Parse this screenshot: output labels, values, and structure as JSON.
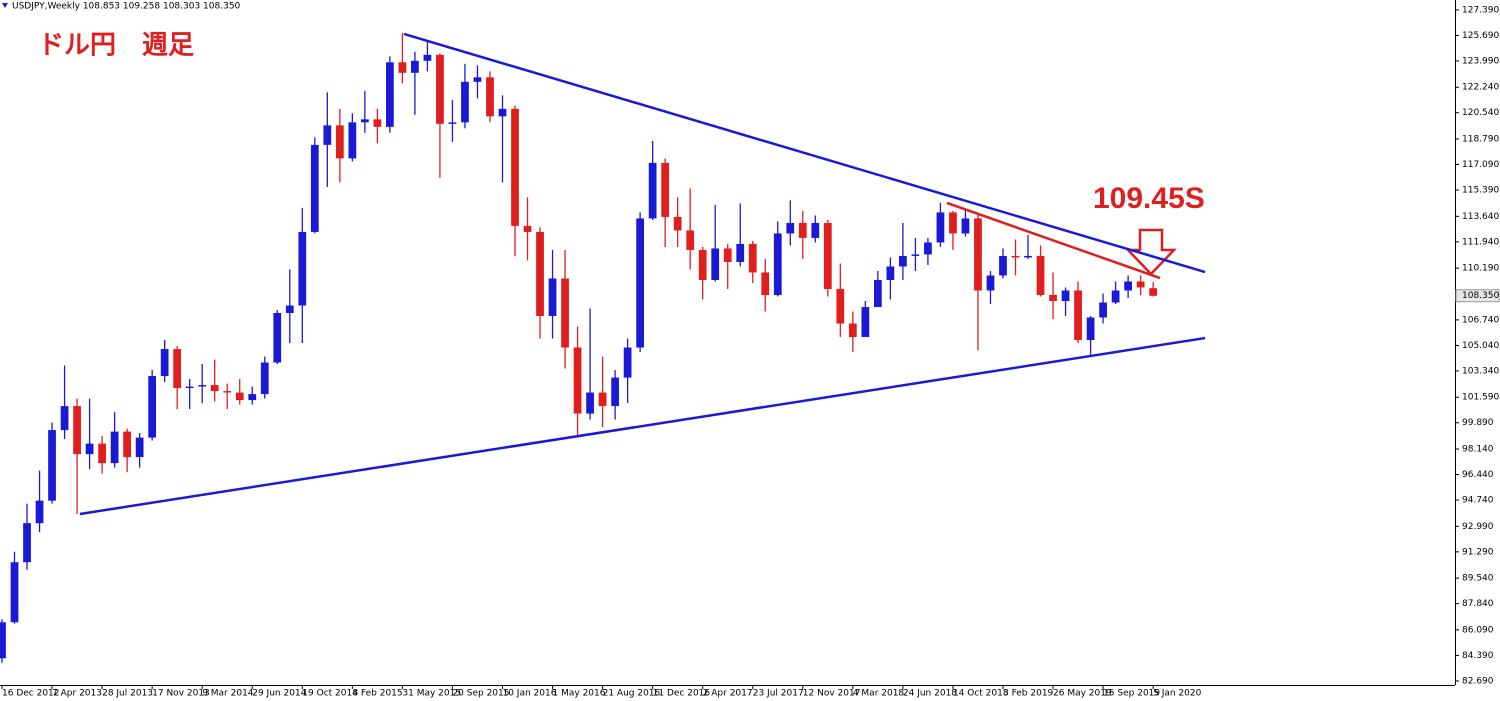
{
  "chart_data": {
    "type": "candlestick",
    "header": "USDJPY,Weekly  108.853 109.258 108.303 108.350",
    "title": "ドル円　週足",
    "annotation": "109.45S",
    "up_color": "#1a1ad6",
    "down_color": "#e01e1e",
    "xlim": [
      -0.64,
      464.5
    ],
    "ylim": [
      82.42,
      128.05
    ],
    "yticks": [
      {
        "value": 127.39,
        "label": "127.390"
      },
      {
        "value": 125.69,
        "label": "125.690"
      },
      {
        "value": 123.99,
        "label": "123.990"
      },
      {
        "value": 122.24,
        "label": "122.240"
      },
      {
        "value": 120.54,
        "label": "120.540"
      },
      {
        "value": 118.79,
        "label": "118.790"
      },
      {
        "value": 117.09,
        "label": "117.090"
      },
      {
        "value": 115.39,
        "label": "115.390"
      },
      {
        "value": 113.64,
        "label": "113.640"
      },
      {
        "value": 111.94,
        "label": "111.940"
      },
      {
        "value": 110.19,
        "label": "110.190"
      },
      {
        "value": 106.74,
        "label": "106.740"
      },
      {
        "value": 105.04,
        "label": "105.040"
      },
      {
        "value": 103.34,
        "label": "103.340"
      },
      {
        "value": 101.59,
        "label": "101.590"
      },
      {
        "value": 99.89,
        "label": "99.890"
      },
      {
        "value": 98.14,
        "label": "98.140"
      },
      {
        "value": 96.44,
        "label": "96.440"
      },
      {
        "value": 94.74,
        "label": "94.740"
      },
      {
        "value": 92.99,
        "label": "92.990"
      },
      {
        "value": 91.29,
        "label": "91.290"
      },
      {
        "value": 89.54,
        "label": "89.540"
      },
      {
        "value": 87.84,
        "label": "87.840"
      },
      {
        "value": 86.09,
        "label": "86.090"
      },
      {
        "value": 84.39,
        "label": "84.390"
      },
      {
        "value": 82.69,
        "label": "82.690"
      }
    ],
    "current_price": {
      "value": 108.35,
      "label": "108.350"
    },
    "xticks": [
      {
        "value": 0,
        "label": "16 Dec 2012"
      },
      {
        "value": 16,
        "label": "7 Apr 2013"
      },
      {
        "value": 32,
        "label": "28 Jul 2013"
      },
      {
        "value": 48,
        "label": "17 Nov 2013"
      },
      {
        "value": 64,
        "label": "9 Mar 2014"
      },
      {
        "value": 80,
        "label": "29 Jun 2014"
      },
      {
        "value": 96,
        "label": "19 Oct 2014"
      },
      {
        "value": 112,
        "label": "8 Feb 2015"
      },
      {
        "value": 128,
        "label": "31 May 2015"
      },
      {
        "value": 144,
        "label": "20 Sep 2015"
      },
      {
        "value": 160,
        "label": "10 Jan 2016"
      },
      {
        "value": 176,
        "label": "1 May 2016"
      },
      {
        "value": 192,
        "label": "21 Aug 2016"
      },
      {
        "value": 208,
        "label": "11 Dec 2016"
      },
      {
        "value": 224,
        "label": "2 Apr 2017"
      },
      {
        "value": 240,
        "label": "23 Jul 2017"
      },
      {
        "value": 256,
        "label": "12 Nov 2017"
      },
      {
        "value": 272,
        "label": "4 Mar 2018"
      },
      {
        "value": 288,
        "label": "24 Jun 2018"
      },
      {
        "value": 304,
        "label": "14 Oct 2018"
      },
      {
        "value": 320,
        "label": "3 Feb 2019"
      },
      {
        "value": 336,
        "label": "26 May 2019"
      },
      {
        "value": 352,
        "label": "15 Sep 2019"
      },
      {
        "value": 368,
        "label": "5 Jan 2020"
      }
    ],
    "trendlines": [
      {
        "color": "#1a1ad6",
        "points": [
          [
            128.5,
            125.79
          ],
          [
            384.6,
            109.93
          ]
        ]
      },
      {
        "color": "#1a1ad6",
        "points": [
          [
            24.9,
            93.81
          ],
          [
            384.6,
            105.53
          ]
        ]
      },
      {
        "color": "#e01e1e",
        "points": [
          [
            302.1,
            114.53
          ],
          [
            370.2,
            109.53
          ]
        ]
      }
    ],
    "candles": [
      {
        "week": 0,
        "open": 84.2,
        "high": 86.8,
        "low": 83.9,
        "close": 86.6
      },
      {
        "week": 4,
        "open": 86.6,
        "high": 91.3,
        "low": 86.5,
        "close": 90.6
      },
      {
        "week": 8,
        "open": 90.6,
        "high": 94.5,
        "low": 90.1,
        "close": 93.2
      },
      {
        "week": 12,
        "open": 93.2,
        "high": 96.7,
        "low": 92.6,
        "close": 94.7
      },
      {
        "week": 16,
        "open": 94.7,
        "high": 99.9,
        "low": 94.5,
        "close": 99.4
      },
      {
        "week": 20,
        "open": 99.4,
        "high": 103.7,
        "low": 98.8,
        "close": 101.0
      },
      {
        "week": 24,
        "open": 101.0,
        "high": 101.5,
        "low": 93.8,
        "close": 97.8
      },
      {
        "week": 28,
        "open": 97.8,
        "high": 101.5,
        "low": 96.8,
        "close": 98.5
      },
      {
        "week": 32,
        "open": 98.5,
        "high": 99.0,
        "low": 96.5,
        "close": 97.2
      },
      {
        "week": 36,
        "open": 97.2,
        "high": 100.6,
        "low": 96.9,
        "close": 99.3
      },
      {
        "week": 40,
        "open": 99.3,
        "high": 99.5,
        "low": 96.6,
        "close": 97.6
      },
      {
        "week": 44,
        "open": 97.6,
        "high": 99.2,
        "low": 96.9,
        "close": 98.9
      },
      {
        "week": 48,
        "open": 98.9,
        "high": 103.4,
        "low": 98.7,
        "close": 103.0
      },
      {
        "week": 52,
        "open": 103.0,
        "high": 105.4,
        "low": 102.6,
        "close": 104.8
      },
      {
        "week": 56,
        "open": 104.8,
        "high": 105.0,
        "low": 100.8,
        "close": 102.2
      },
      {
        "week": 60,
        "open": 102.2,
        "high": 102.8,
        "low": 100.8,
        "close": 102.3
      },
      {
        "week": 64,
        "open": 102.3,
        "high": 103.8,
        "low": 101.2,
        "close": 102.4
      },
      {
        "week": 68,
        "open": 102.4,
        "high": 104.1,
        "low": 101.3,
        "close": 102.0
      },
      {
        "week": 72,
        "open": 102.0,
        "high": 102.5,
        "low": 100.8,
        "close": 101.9
      },
      {
        "week": 76,
        "open": 101.9,
        "high": 102.8,
        "low": 101.1,
        "close": 101.4
      },
      {
        "week": 80,
        "open": 101.4,
        "high": 102.3,
        "low": 101.1,
        "close": 101.8
      },
      {
        "week": 84,
        "open": 101.8,
        "high": 104.3,
        "low": 101.5,
        "close": 103.9
      },
      {
        "week": 88,
        "open": 103.9,
        "high": 107.4,
        "low": 103.8,
        "close": 107.2
      },
      {
        "week": 92,
        "open": 107.2,
        "high": 110.1,
        "low": 105.2,
        "close": 107.7
      },
      {
        "week": 96,
        "open": 107.7,
        "high": 114.2,
        "low": 105.2,
        "close": 112.6
      },
      {
        "week": 100,
        "open": 112.6,
        "high": 118.9,
        "low": 112.5,
        "close": 118.4
      },
      {
        "week": 104,
        "open": 118.4,
        "high": 121.9,
        "low": 115.6,
        "close": 119.7
      },
      {
        "week": 108,
        "open": 119.7,
        "high": 120.8,
        "low": 115.9,
        "close": 117.5
      },
      {
        "week": 112,
        "open": 117.5,
        "high": 120.5,
        "low": 117.3,
        "close": 119.9
      },
      {
        "week": 116,
        "open": 119.9,
        "high": 122.0,
        "low": 119.2,
        "close": 120.1
      },
      {
        "week": 120,
        "open": 120.1,
        "high": 120.8,
        "low": 118.5,
        "close": 119.6
      },
      {
        "week": 124,
        "open": 119.6,
        "high": 124.3,
        "low": 119.2,
        "close": 123.9
      },
      {
        "week": 128,
        "open": 123.9,
        "high": 125.86,
        "low": 122.5,
        "close": 123.2
      },
      {
        "week": 132,
        "open": 123.2,
        "high": 124.6,
        "low": 120.4,
        "close": 124.0
      },
      {
        "week": 136,
        "open": 124.0,
        "high": 125.3,
        "low": 123.3,
        "close": 124.4
      },
      {
        "week": 140,
        "open": 124.4,
        "high": 124.5,
        "low": 116.2,
        "close": 119.8
      },
      {
        "week": 144,
        "open": 119.8,
        "high": 121.4,
        "low": 118.6,
        "close": 119.9
      },
      {
        "week": 148,
        "open": 119.9,
        "high": 123.8,
        "low": 119.5,
        "close": 122.6
      },
      {
        "week": 152,
        "open": 122.6,
        "high": 123.7,
        "low": 121.5,
        "close": 122.9
      },
      {
        "week": 156,
        "open": 122.9,
        "high": 123.3,
        "low": 119.9,
        "close": 120.3
      },
      {
        "week": 160,
        "open": 120.3,
        "high": 121.7,
        "low": 115.9,
        "close": 120.8
      },
      {
        "week": 164,
        "open": 120.8,
        "high": 121.0,
        "low": 110.98,
        "close": 113.0
      },
      {
        "week": 168,
        "open": 113.0,
        "high": 114.9,
        "low": 110.7,
        "close": 112.6
      },
      {
        "week": 172,
        "open": 112.6,
        "high": 112.9,
        "low": 105.5,
        "close": 107.0
      },
      {
        "week": 176,
        "open": 107.0,
        "high": 111.4,
        "low": 105.5,
        "close": 109.5
      },
      {
        "week": 180,
        "open": 109.5,
        "high": 111.4,
        "low": 103.5,
        "close": 104.9
      },
      {
        "week": 184,
        "open": 104.9,
        "high": 106.3,
        "low": 99.0,
        "close": 100.5
      },
      {
        "week": 188,
        "open": 100.5,
        "high": 107.5,
        "low": 100.1,
        "close": 101.9
      },
      {
        "week": 192,
        "open": 101.9,
        "high": 104.3,
        "low": 99.6,
        "close": 101.0
      },
      {
        "week": 196,
        "open": 101.0,
        "high": 103.4,
        "low": 100.1,
        "close": 102.9
      },
      {
        "week": 200,
        "open": 102.9,
        "high": 105.5,
        "low": 101.2,
        "close": 104.9
      },
      {
        "week": 204,
        "open": 104.9,
        "high": 113.9,
        "low": 104.6,
        "close": 113.5
      },
      {
        "week": 208,
        "open": 113.5,
        "high": 118.66,
        "low": 113.4,
        "close": 117.2
      },
      {
        "week": 212,
        "open": 117.2,
        "high": 117.5,
        "low": 111.6,
        "close": 113.6
      },
      {
        "week": 216,
        "open": 113.6,
        "high": 114.9,
        "low": 111.6,
        "close": 112.7
      },
      {
        "week": 220,
        "open": 112.7,
        "high": 115.5,
        "low": 110.1,
        "close": 111.4
      },
      {
        "week": 224,
        "open": 111.4,
        "high": 111.6,
        "low": 108.1,
        "close": 109.4
      },
      {
        "week": 228,
        "open": 109.4,
        "high": 114.4,
        "low": 109.3,
        "close": 111.5
      },
      {
        "week": 232,
        "open": 111.5,
        "high": 111.8,
        "low": 108.8,
        "close": 110.6
      },
      {
        "week": 236,
        "open": 110.6,
        "high": 114.5,
        "low": 110.3,
        "close": 111.8
      },
      {
        "week": 240,
        "open": 111.8,
        "high": 112.0,
        "low": 109.2,
        "close": 109.9
      },
      {
        "week": 244,
        "open": 109.9,
        "high": 110.8,
        "low": 107.3,
        "close": 108.4
      },
      {
        "week": 248,
        "open": 108.4,
        "high": 113.3,
        "low": 108.3,
        "close": 112.5
      },
      {
        "week": 252,
        "open": 112.5,
        "high": 114.7,
        "low": 111.7,
        "close": 113.2
      },
      {
        "week": 256,
        "open": 113.2,
        "high": 114.0,
        "low": 110.8,
        "close": 112.2
      },
      {
        "week": 260,
        "open": 112.2,
        "high": 113.7,
        "low": 111.9,
        "close": 113.2
      },
      {
        "week": 264,
        "open": 113.2,
        "high": 113.4,
        "low": 108.3,
        "close": 108.8
      },
      {
        "week": 268,
        "open": 108.8,
        "high": 110.5,
        "low": 105.6,
        "close": 106.5
      },
      {
        "week": 272,
        "open": 106.5,
        "high": 107.3,
        "low": 104.6,
        "close": 105.6
      },
      {
        "week": 276,
        "open": 105.6,
        "high": 108.0,
        "low": 105.6,
        "close": 107.6
      },
      {
        "week": 280,
        "open": 107.6,
        "high": 110.0,
        "low": 107.6,
        "close": 109.4
      },
      {
        "week": 284,
        "open": 109.4,
        "high": 110.9,
        "low": 108.1,
        "close": 110.3
      },
      {
        "week": 288,
        "open": 110.3,
        "high": 113.2,
        "low": 109.4,
        "close": 111.0
      },
      {
        "week": 292,
        "open": 111.0,
        "high": 112.2,
        "low": 110.0,
        "close": 111.1
      },
      {
        "week": 296,
        "open": 111.1,
        "high": 112.2,
        "low": 110.4,
        "close": 111.9
      },
      {
        "week": 300,
        "open": 111.9,
        "high": 114.55,
        "low": 111.6,
        "close": 113.9
      },
      {
        "week": 304,
        "open": 113.9,
        "high": 114.0,
        "low": 111.4,
        "close": 112.5
      },
      {
        "week": 308,
        "open": 112.5,
        "high": 114.1,
        "low": 112.3,
        "close": 113.5
      },
      {
        "week": 312,
        "open": 113.5,
        "high": 113.8,
        "low": 104.7,
        "close": 108.7
      },
      {
        "week": 316,
        "open": 108.7,
        "high": 110.0,
        "low": 107.8,
        "close": 109.7
      },
      {
        "week": 320,
        "open": 109.7,
        "high": 111.5,
        "low": 109.5,
        "close": 111.0
      },
      {
        "week": 324,
        "open": 111.0,
        "high": 112.1,
        "low": 109.7,
        "close": 110.9
      },
      {
        "week": 328,
        "open": 110.9,
        "high": 112.4,
        "low": 110.8,
        "close": 111.0
      },
      {
        "week": 332,
        "open": 111.0,
        "high": 111.7,
        "low": 108.3,
        "close": 108.4
      },
      {
        "week": 336,
        "open": 108.4,
        "high": 109.9,
        "low": 106.8,
        "close": 108.0
      },
      {
        "week": 340,
        "open": 108.0,
        "high": 108.9,
        "low": 107.0,
        "close": 108.7
      },
      {
        "week": 344,
        "open": 108.7,
        "high": 109.3,
        "low": 105.2,
        "close": 105.4
      },
      {
        "week": 348,
        "open": 105.4,
        "high": 107.0,
        "low": 104.4,
        "close": 106.9
      },
      {
        "week": 352,
        "open": 106.9,
        "high": 108.5,
        "low": 106.5,
        "close": 107.9
      },
      {
        "week": 356,
        "open": 107.9,
        "high": 109.3,
        "low": 107.8,
        "close": 108.7
      },
      {
        "week": 360,
        "open": 108.7,
        "high": 109.7,
        "low": 108.2,
        "close": 109.3
      },
      {
        "week": 364,
        "open": 109.3,
        "high": 109.7,
        "low": 108.4,
        "close": 108.9
      },
      {
        "week": 368,
        "open": 108.853,
        "high": 109.258,
        "low": 108.303,
        "close": 108.35
      }
    ]
  }
}
